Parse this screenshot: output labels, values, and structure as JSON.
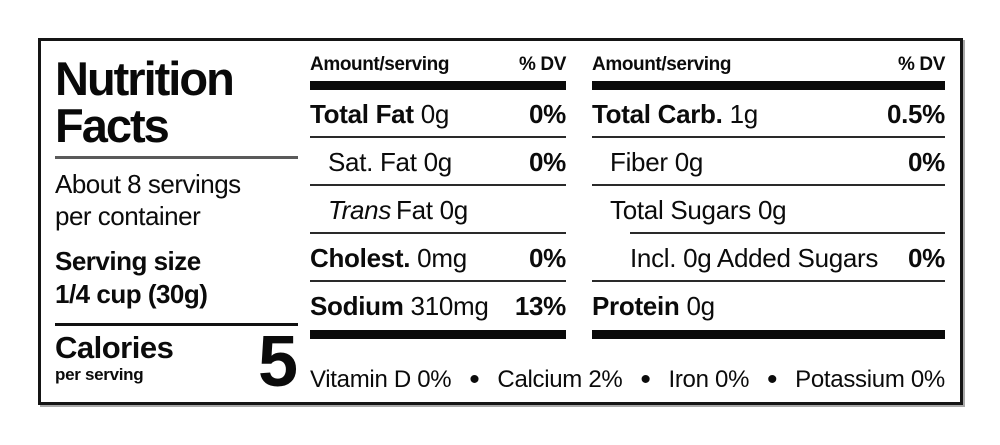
{
  "label": {
    "title_line1": "Nutrition",
    "title_line2": "Facts",
    "servings_line1": "About 8 servings",
    "servings_line2": "per container",
    "serving_size_label": "Serving size",
    "serving_size_value": "1/4 cup (30g)",
    "calories_label": "Calories",
    "calories_sub": "per serving",
    "calories_value": "5"
  },
  "columns": [
    {
      "header": "Amount/serving",
      "dv_header": "% DV",
      "rows": [
        {
          "name": "Total Fat",
          "amount": "0g",
          "dv": "0%"
        },
        {
          "name": "Sat. Fat",
          "amount": "0g",
          "dv": "0%"
        },
        {
          "name": "Trans",
          "amount": "Fat 0g",
          "dv": ""
        },
        {
          "name": "Cholest.",
          "amount": "0mg",
          "dv": "0%"
        },
        {
          "name": "Sodium",
          "amount": "310mg",
          "dv": "13%"
        }
      ]
    },
    {
      "header": "Amount/serving",
      "dv_header": "% DV",
      "rows": [
        {
          "name": "Total Carb.",
          "amount": "1g",
          "dv": "0.5%"
        },
        {
          "name": "Fiber",
          "amount": "0g",
          "dv": "0%"
        },
        {
          "name": "Total Sugars",
          "amount": "0g",
          "dv": ""
        },
        {
          "name": "Incl. 0g Added Sugars",
          "amount": "",
          "dv": "0%"
        },
        {
          "name": "Protein",
          "amount": "0g",
          "dv": ""
        }
      ]
    }
  ],
  "footer": {
    "bullet": "•",
    "items": [
      "Vitamin D 0%",
      "Calcium 2%",
      "Iron 0%",
      "Potassium 0%"
    ]
  },
  "colors": {
    "text": "#0b0b0b",
    "background": "#ffffff",
    "border": "#151515",
    "thick_bar": "#0a0a0a",
    "hairline": "#2a2a2a"
  }
}
